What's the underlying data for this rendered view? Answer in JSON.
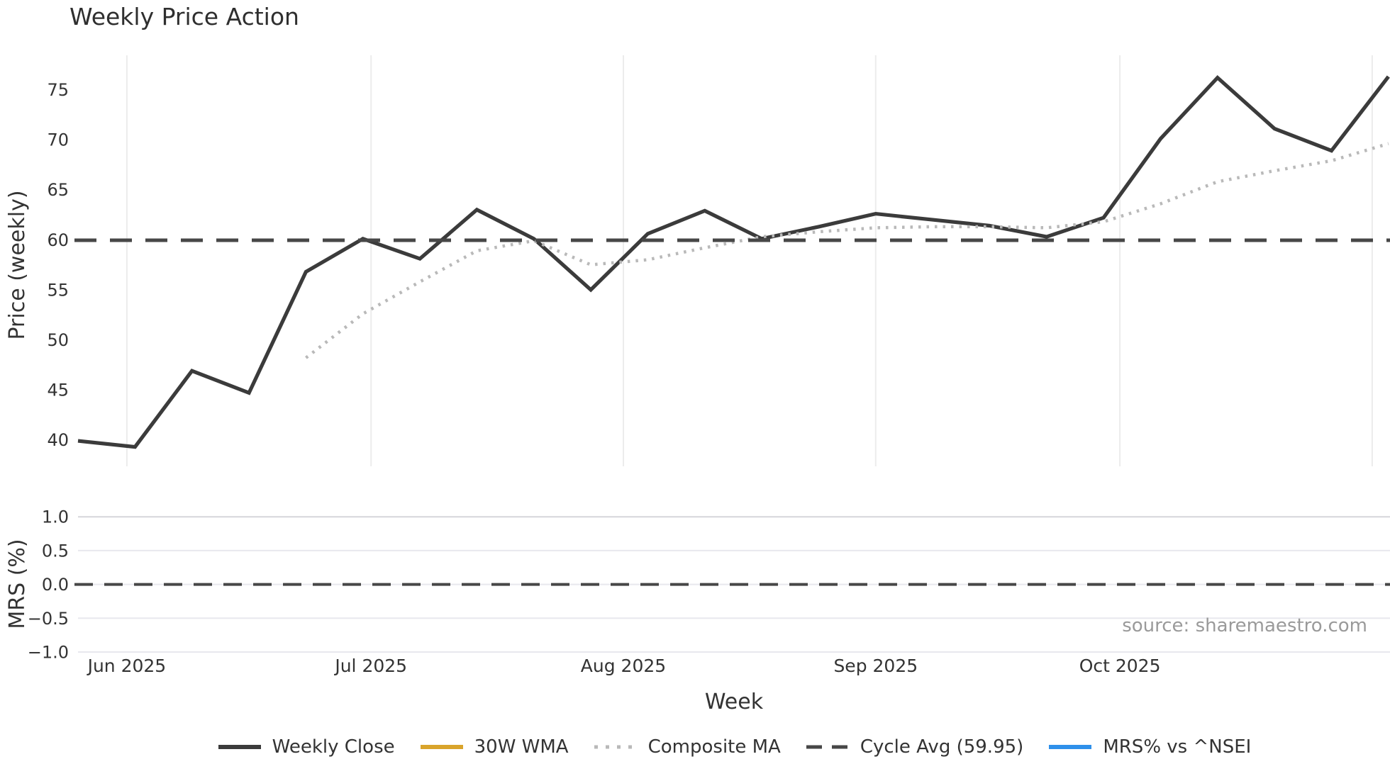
{
  "title": "Weekly Price Action",
  "source_note": "source: sharemaestro.com",
  "colors": {
    "background": "#ffffff",
    "close_line": "#3b3b3b",
    "wma_line": "#d9a42b",
    "composite_line": "#b9b9b9",
    "cycle_avg_line": "#474747",
    "mrs_line": "#2e90ea",
    "gridline": "#ececec",
    "mrs_gridline": "#e8e8ee",
    "mrs_gridline_top": "#d6d6da",
    "text": "#333333",
    "muted_text": "#9a9a9a"
  },
  "legend": {
    "items": [
      {
        "label": "Weekly Close",
        "style": "solid",
        "color": "#3b3b3b"
      },
      {
        "label": "30W WMA",
        "style": "solid",
        "color": "#d9a42b"
      },
      {
        "label": "Composite MA",
        "style": "dotted",
        "color": "#b9b9b9"
      },
      {
        "label": "Cycle Avg (59.95)",
        "style": "dashed",
        "color": "#474747"
      },
      {
        "label": "MRS% vs ^NSEI",
        "style": "solid",
        "color": "#2e90ea"
      }
    ]
  },
  "chart_data": [
    {
      "type": "line",
      "panel": "price",
      "title": "Weekly Price Action",
      "xlabel": "Week",
      "ylabel": "Price (weekly)",
      "grid": "vertical-months-only",
      "x": [
        "2025-05-26",
        "2025-06-02",
        "2025-06-09",
        "2025-06-16",
        "2025-06-23",
        "2025-06-30",
        "2025-07-07",
        "2025-07-14",
        "2025-07-21",
        "2025-07-28",
        "2025-08-04",
        "2025-08-11",
        "2025-08-18",
        "2025-08-25",
        "2025-09-01",
        "2025-09-08",
        "2025-09-15",
        "2025-09-22",
        "2025-09-29",
        "2025-10-06",
        "2025-10-13",
        "2025-10-20",
        "2025-10-27",
        "2025-11-03"
      ],
      "series": [
        {
          "name": "Weekly Close",
          "style": "solid",
          "color": "#3b3b3b",
          "values": [
            39.9,
            39.3,
            46.9,
            44.7,
            56.8,
            60.1,
            58.1,
            63.0,
            60.1,
            55.0,
            60.6,
            62.9,
            60.1,
            61.3,
            62.6,
            62.0,
            61.4,
            60.3,
            62.2,
            70.1,
            76.2,
            71.1,
            68.9,
            76.3
          ]
        },
        {
          "name": "30W WMA",
          "style": "solid",
          "color": "#d9a42b",
          "values": [
            null,
            null,
            null,
            null,
            null,
            null,
            null,
            null,
            null,
            null,
            null,
            null,
            null,
            null,
            null,
            null,
            null,
            null,
            null,
            null,
            null,
            null,
            null,
            null
          ]
        },
        {
          "name": "Composite MA",
          "style": "dotted",
          "color": "#b9b9b9",
          "values": [
            null,
            null,
            null,
            null,
            48.2,
            52.6,
            55.8,
            58.9,
            59.9,
            57.5,
            58.0,
            59.2,
            60.3,
            60.8,
            61.2,
            61.3,
            61.3,
            61.2,
            61.8,
            63.6,
            65.8,
            66.9,
            67.9,
            69.6
          ]
        },
        {
          "name": "Cycle Avg (59.95)",
          "style": "dashed",
          "color": "#474747",
          "constant": 59.95
        }
      ],
      "yticks": [
        {
          "v": 40,
          "label": "40"
        },
        {
          "v": 45,
          "label": "45"
        },
        {
          "v": 50,
          "label": "50"
        },
        {
          "v": 55,
          "label": "55"
        },
        {
          "v": 60,
          "label": "60"
        },
        {
          "v": 65,
          "label": "65"
        },
        {
          "v": 70,
          "label": "70"
        },
        {
          "v": 75,
          "label": "75"
        }
      ],
      "ylim": [
        37.4,
        78.4
      ],
      "xticks": [
        {
          "date": "2025-06-01",
          "label": "Jun 2025"
        },
        {
          "date": "2025-07-01",
          "label": "Jul 2025"
        },
        {
          "date": "2025-08-01",
          "label": "Aug 2025"
        },
        {
          "date": "2025-09-01",
          "label": "Sep 2025"
        },
        {
          "date": "2025-10-01",
          "label": "Oct 2025"
        },
        {
          "date": "2025-11-01",
          "label": ""
        }
      ]
    },
    {
      "type": "line",
      "panel": "mrs",
      "ylabel": "MRS (%)",
      "grid": "horizontal-only",
      "series": [
        {
          "name": "MRS% vs ^NSEI",
          "style": "solid",
          "color": "#2e90ea",
          "values": []
        },
        {
          "name": "zero-reference",
          "style": "dashed",
          "color": "#474747",
          "constant": 0
        }
      ],
      "yticks": [
        {
          "v": -1.0,
          "label": "−1.0"
        },
        {
          "v": -0.5,
          "label": "−0.5"
        },
        {
          "v": 0.0,
          "label": "0.0"
        },
        {
          "v": 0.5,
          "label": "0.5"
        },
        {
          "v": 1.0,
          "label": "1.0"
        }
      ],
      "ylim": [
        -1.1,
        1.15
      ]
    }
  ]
}
